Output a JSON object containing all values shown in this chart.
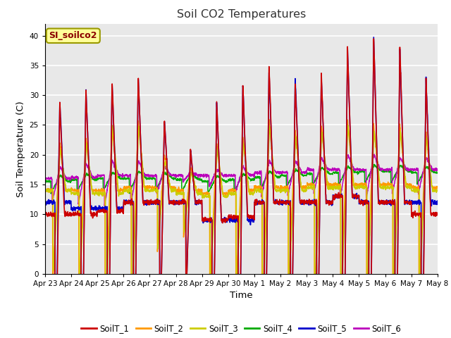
{
  "title": "Soil CO2 Temperatures",
  "xlabel": "Time",
  "ylabel": "Soil Temperature (C)",
  "ylim": [
    0,
    42
  ],
  "yticks": [
    0,
    5,
    10,
    15,
    20,
    25,
    30,
    35,
    40
  ],
  "bg_color": "#e8e8e8",
  "fig_color": "#ffffff",
  "annotation_text": "SI_soilco2",
  "annotation_color": "#8b0000",
  "annotation_bg": "#ffff99",
  "annotation_border": "#999900",
  "series_colors": [
    "#cc0000",
    "#ff9900",
    "#cccc00",
    "#00aa00",
    "#0000cc",
    "#bb00bb"
  ],
  "series_names": [
    "SoilT_1",
    "SoilT_2",
    "SoilT_3",
    "SoilT_4",
    "SoilT_5",
    "SoilT_6"
  ],
  "xtick_labels": [
    "Apr 23",
    "Apr 24",
    "Apr 25",
    "Apr 26",
    "Apr 27",
    "Apr 28",
    "Apr 29",
    "Apr 30",
    "May 1",
    "May 2",
    "May 3",
    "May 4",
    "May 5",
    "May 6",
    "May 7",
    "May 8"
  ]
}
